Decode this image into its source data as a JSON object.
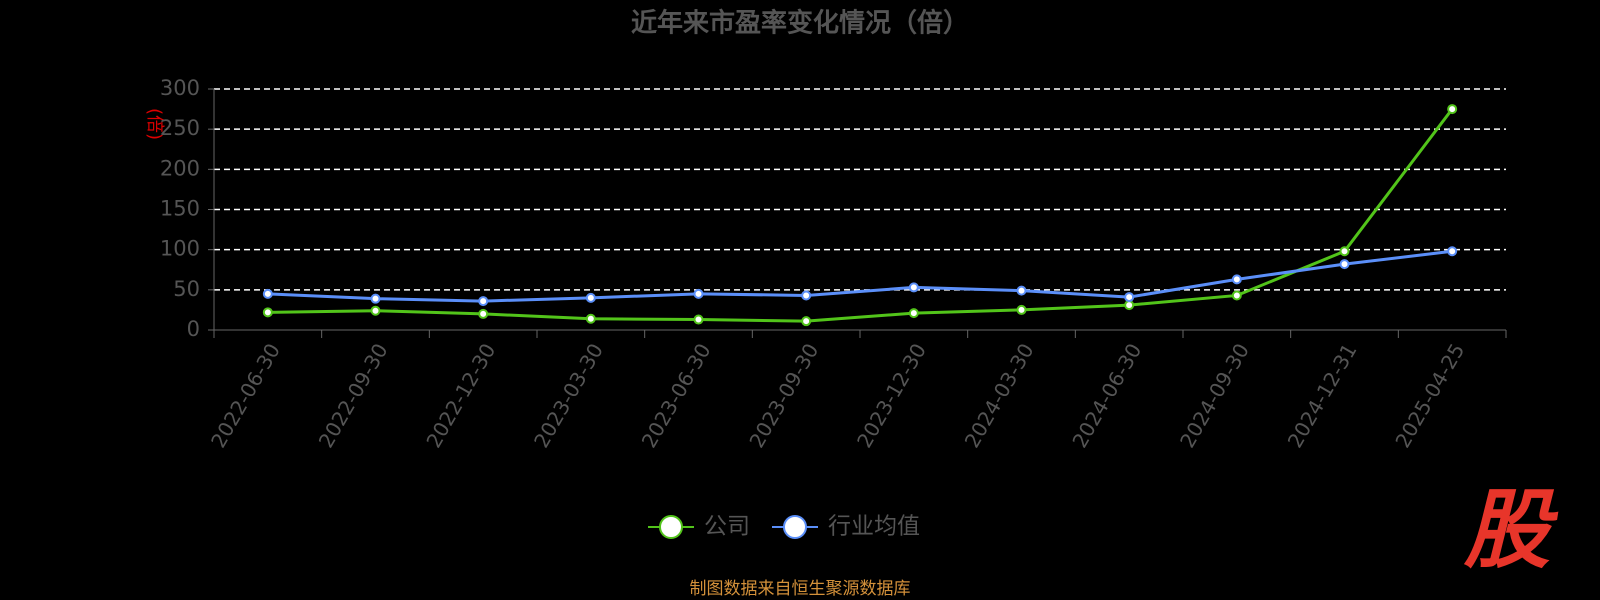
{
  "chart_data": {
    "type": "line",
    "title": "近年来市盈率变化情况（倍）",
    "y_label": "(倍)",
    "categories": [
      "2022-06-30",
      "2022-09-30",
      "2022-12-30",
      "2023-03-30",
      "2023-06-30",
      "2023-09-30",
      "2023-12-30",
      "2024-03-30",
      "2024-06-30",
      "2024-09-30",
      "2024-12-31",
      "2025-04-25"
    ],
    "series": [
      {
        "name": "公司",
        "color": "#52c41a",
        "values": [
          22,
          24,
          20,
          14,
          13,
          11,
          21,
          25,
          31,
          43,
          98,
          275
        ]
      },
      {
        "name": "行业均值",
        "color": "#5b8ff9",
        "values": [
          45,
          39,
          36,
          40,
          45,
          43,
          53,
          49,
          41,
          63,
          82,
          98
        ]
      }
    ],
    "ylim": [
      0,
      300
    ],
    "yticks": [
      0,
      50,
      100,
      150,
      200,
      250,
      300
    ],
    "grid": true,
    "source": "制图数据来自恒生聚源数据库",
    "logo": "股"
  }
}
